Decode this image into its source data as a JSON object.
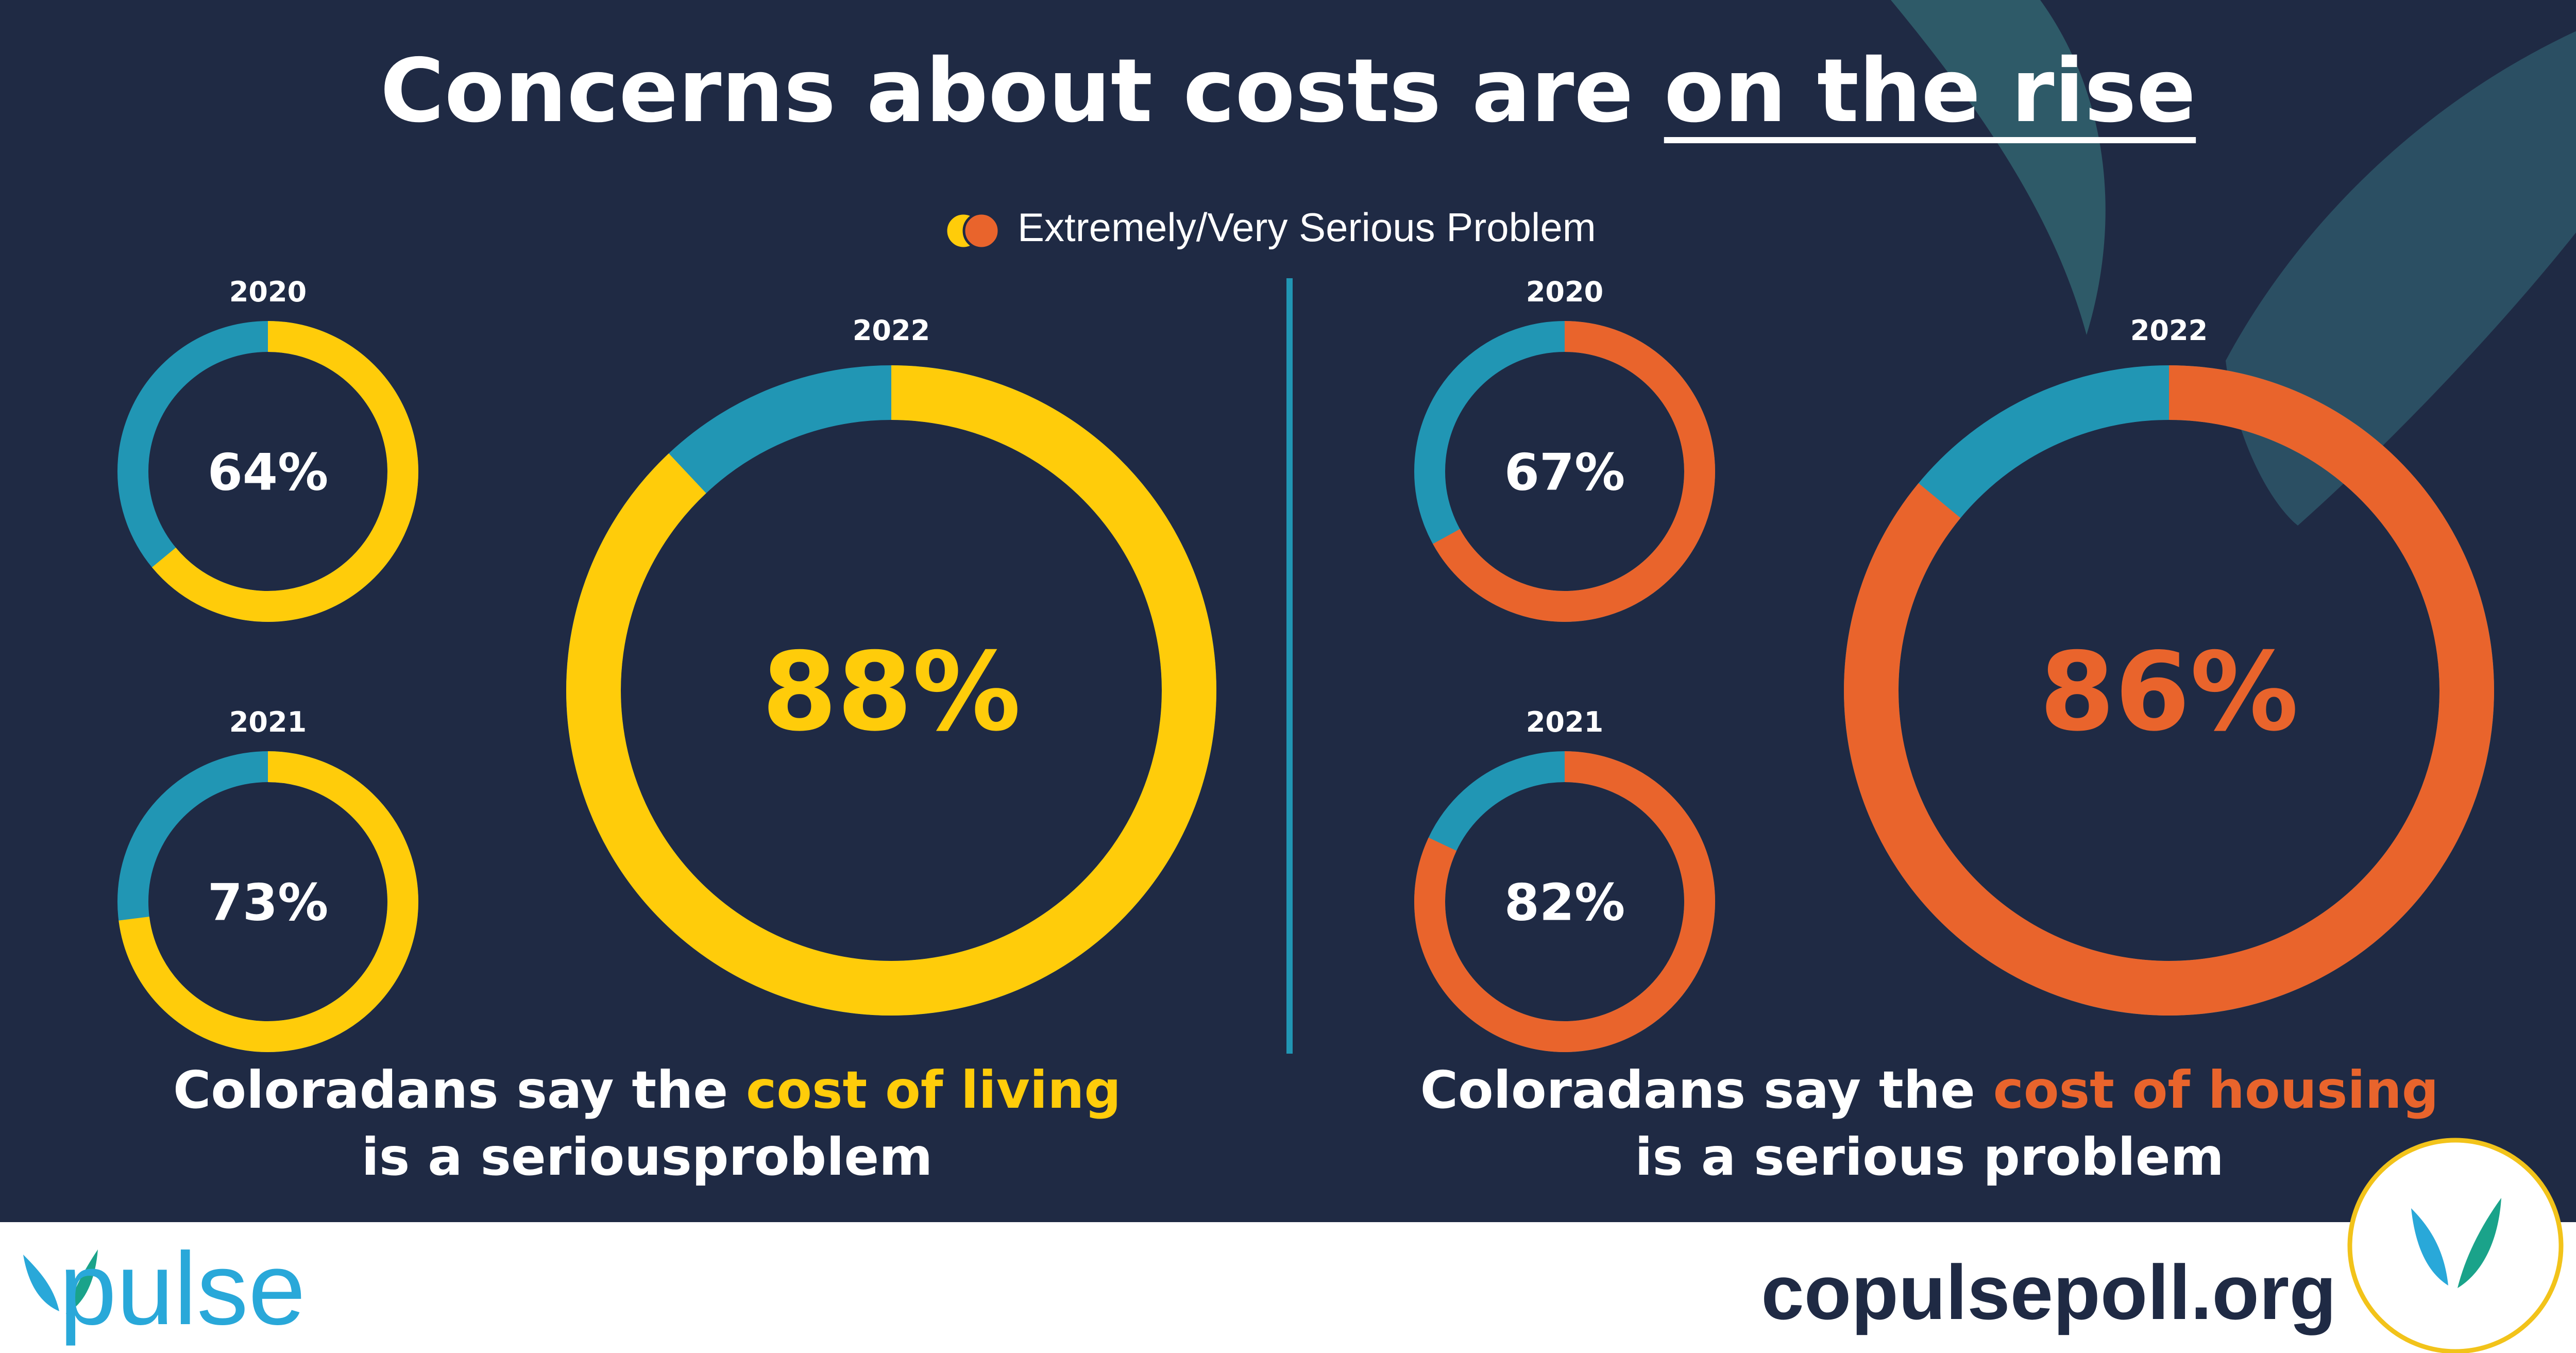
{
  "title": {
    "prefix": "Concerns about costs are ",
    "emphasis": "on the rise"
  },
  "legend": {
    "label": "Extremely/Very Serious Problem"
  },
  "colors": {
    "background": "#1f2a44",
    "track": "#2196b4",
    "living": "#ffcc0a",
    "housing": "#e9642c",
    "footer": "#ffffff",
    "footer_text": "#1f2a44",
    "brand": "#29a8d9"
  },
  "chart_data": [
    {
      "type": "pie",
      "series_name": "cost of living",
      "categories": [
        "2020",
        "2021",
        "2022"
      ],
      "values": [
        64,
        73,
        88
      ],
      "value_labels": [
        "64%",
        "73%",
        "88%"
      ],
      "unit": "%"
    },
    {
      "type": "pie",
      "series_name": "cost of housing",
      "categories": [
        "2020",
        "2021",
        "2022"
      ],
      "values": [
        67,
        82,
        86
      ],
      "value_labels": [
        "67%",
        "82%",
        "86%"
      ],
      "unit": "%"
    }
  ],
  "captions": {
    "living": {
      "line1_prefix": "Coloradans say the ",
      "line1_highlight": "cost of living",
      "line2": "is a seriousproblem"
    },
    "housing": {
      "line1_prefix": "Coloradans say the ",
      "line1_highlight": "cost of housing",
      "line2": "is a serious problem"
    }
  },
  "footer": {
    "brand": "pulse",
    "website": "copulsepoll.org"
  }
}
